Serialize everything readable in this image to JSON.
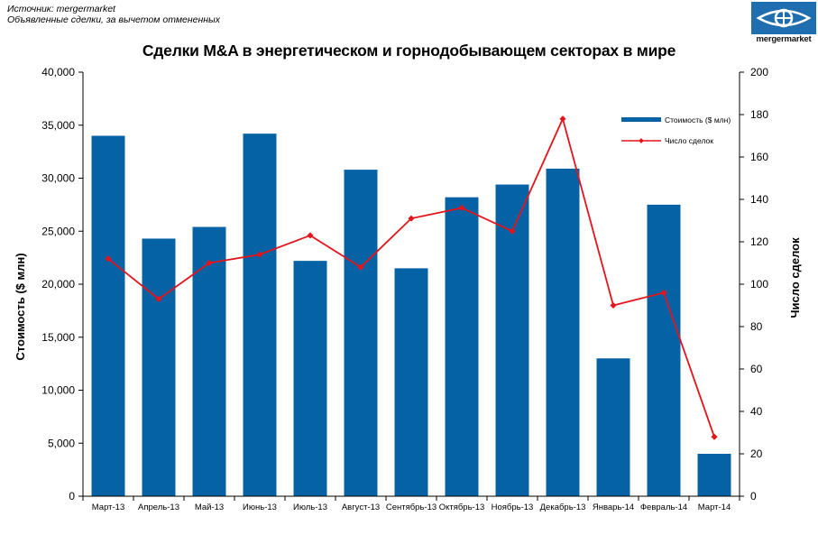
{
  "source": {
    "line1": "Источник: mergermarket",
    "line2": "Объявленные сделки, за вычетом отмененных"
  },
  "logo": {
    "text": "mergermarket",
    "icon": "eye-logo-icon"
  },
  "colors": {
    "bar": "#0563a5",
    "line": "#e4141b",
    "logo": "#1f6fb0"
  },
  "chart_data": {
    "type": "bar",
    "title": "Сделки M&A в энергетическом и горнодобывающем секторах в мире",
    "xlabel": "",
    "ylabel": "Стоимость  ($ млн)",
    "y2label": "Число сделок",
    "ylim": [
      0,
      40000
    ],
    "y2lim": [
      0,
      200
    ],
    "yticks": [
      "0",
      "5,000",
      "10,000",
      "15,000",
      "20,000",
      "25,000",
      "30,000",
      "35,000",
      "40,000"
    ],
    "y2ticks": [
      "0",
      "20",
      "40",
      "60",
      "80",
      "100",
      "120",
      "140",
      "160",
      "180",
      "200"
    ],
    "grid": false,
    "legend_position": "top-right",
    "categories": [
      "Март-13",
      "Апрель-13",
      "Май-13",
      "Июнь-13",
      "Июль-13",
      "Август-13",
      "Сентябрь-13",
      "Октябрь-13",
      "Ноябрь-13",
      "Декабрь-13",
      "Январь-14",
      "Февраль-14",
      "Март-14"
    ],
    "series": [
      {
        "name": "Стоимость  ($ млн)",
        "type": "bar",
        "axis": "left",
        "values": [
          34000,
          24300,
          25400,
          34200,
          22200,
          30800,
          21500,
          28200,
          29400,
          30900,
          13000,
          27500,
          4000
        ]
      },
      {
        "name": "Число сделок",
        "type": "line",
        "axis": "right",
        "values": [
          112,
          93,
          110,
          114,
          123,
          108,
          131,
          136,
          125,
          178,
          90,
          96,
          28
        ]
      }
    ]
  }
}
